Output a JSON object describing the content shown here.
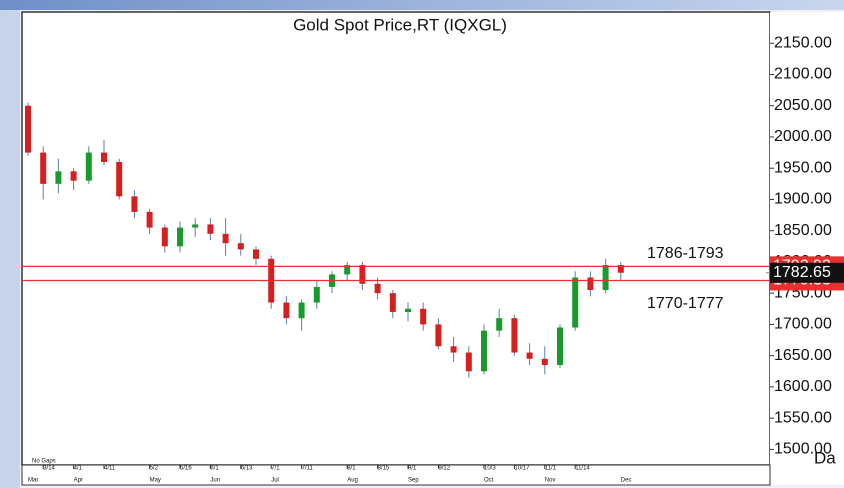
{
  "chart_data": {
    "type": "candlestick",
    "title": "Gold  Spot  Price,RT  (IQXGL)",
    "categories": [
      null,
      "3/14",
      null,
      "4/1",
      null,
      "4/11",
      null,
      null,
      "5/2",
      null,
      "5/16",
      null,
      "6/1",
      null,
      "6/13",
      null,
      "7/1",
      null,
      "7/11",
      null,
      null,
      "8/1",
      null,
      "8/15",
      null,
      "9/1",
      null,
      "9/12",
      null,
      null,
      "10/3",
      null,
      "10/17",
      null,
      "11/1",
      null,
      "11/14",
      null,
      null,
      null
    ],
    "months": [
      "Mar",
      null,
      null,
      "Apr",
      null,
      null,
      null,
      null,
      "May",
      null,
      null,
      null,
      "Jun",
      null,
      null,
      null,
      "Jul",
      null,
      null,
      null,
      null,
      "Aug",
      null,
      null,
      null,
      "Sep",
      null,
      null,
      null,
      null,
      "Oct",
      null,
      null,
      null,
      "Nov",
      null,
      null,
      null,
      null,
      "Dec"
    ],
    "open": [
      2050,
      1975,
      1925,
      1945,
      1930,
      1975,
      1960,
      1905,
      1880,
      1855,
      1825,
      1855,
      1860,
      1845,
      1830,
      1820,
      1805,
      1735,
      1710,
      1735,
      1760,
      1780,
      1795,
      1765,
      1750,
      1720,
      1725,
      1700,
      1665,
      1655,
      1625,
      1690,
      1710,
      1655,
      1645,
      1635,
      1695,
      1775,
      1755,
      1795
    ],
    "high": [
      2055,
      1985,
      1965,
      1950,
      1985,
      1995,
      1965,
      1915,
      1885,
      1860,
      1865,
      1870,
      1870,
      1870,
      1845,
      1825,
      1810,
      1745,
      1740,
      1770,
      1785,
      1800,
      1800,
      1775,
      1755,
      1735,
      1735,
      1710,
      1680,
      1665,
      1700,
      1725,
      1715,
      1670,
      1665,
      1700,
      1785,
      1785,
      1805,
      1800
    ],
    "low": [
      1970,
      1900,
      1910,
      1915,
      1925,
      1955,
      1900,
      1870,
      1845,
      1815,
      1815,
      1840,
      1835,
      1810,
      1810,
      1795,
      1725,
      1700,
      1690,
      1725,
      1750,
      1770,
      1755,
      1740,
      1710,
      1705,
      1690,
      1660,
      1640,
      1615,
      1620,
      1680,
      1650,
      1635,
      1620,
      1630,
      1690,
      1745,
      1750,
      1770
    ],
    "close": [
      1975,
      1925,
      1945,
      1930,
      1975,
      1960,
      1905,
      1880,
      1855,
      1825,
      1855,
      1860,
      1845,
      1830,
      1820,
      1805,
      1735,
      1710,
      1735,
      1760,
      1780,
      1795,
      1765,
      1750,
      1720,
      1725,
      1700,
      1665,
      1655,
      1625,
      1690,
      1710,
      1655,
      1645,
      1635,
      1695,
      1775,
      1755,
      1795,
      1782.65
    ],
    "up_color": "#1a9a2a",
    "down_color": "#d42020",
    "ylim": [
      1475,
      2200
    ],
    "yticks": [
      {
        "value": 1500,
        "label": "1500.00"
      },
      {
        "value": 1550,
        "label": "1550.00"
      },
      {
        "value": 1600,
        "label": "1600.00"
      },
      {
        "value": 1650,
        "label": "1650.00"
      },
      {
        "value": 1700,
        "label": "1700.00"
      },
      {
        "value": 1750,
        "label": "1750.00"
      },
      {
        "value": 1800,
        "label": "1800.00"
      },
      {
        "value": 1850,
        "label": "1850.00"
      },
      {
        "value": 1900,
        "label": "1900.00"
      },
      {
        "value": 1950,
        "label": "1950.00"
      },
      {
        "value": 2000,
        "label": "2000.00"
      },
      {
        "value": 2050,
        "label": "2050.00"
      },
      {
        "value": 2100,
        "label": "2100.00"
      },
      {
        "value": 2150,
        "label": "2150.00"
      }
    ],
    "levels": [
      {
        "value": 1792.92,
        "color": "#e83030"
      },
      {
        "value": 1770.33,
        "color": "#e83030"
      }
    ],
    "last_price": 1782.65,
    "annotations": [
      "1786-1793",
      "1770-1777"
    ],
    "gaps_note": "No Gaps",
    "corner_text": "Da"
  }
}
